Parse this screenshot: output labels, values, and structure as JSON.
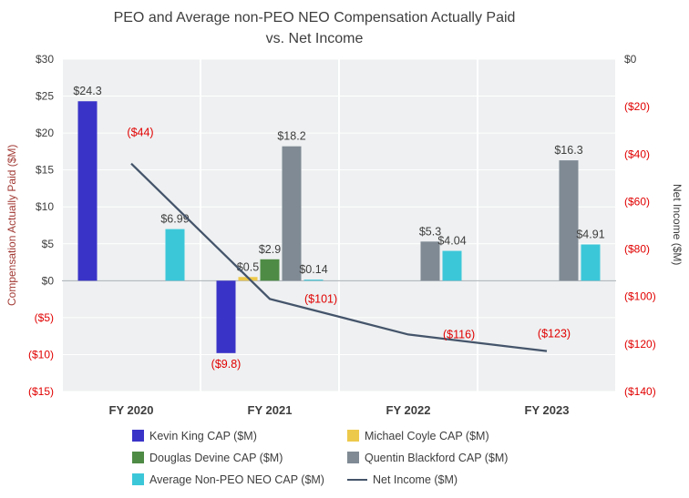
{
  "chart_data": {
    "type": "combo-bar-line",
    "title": "PEO and Average non-PEO NEO Compensation Actually Paid vs. Net Income",
    "title_lines": [
      "PEO and Average non-PEO NEO Compensation Actually Paid",
      "vs. Net Income"
    ],
    "categories": [
      "FY 2020",
      "FY 2021",
      "FY 2022",
      "FY 2023"
    ],
    "bar_series": [
      {
        "name": "Kevin King CAP ($M)",
        "color": "#3a33c8",
        "values": [
          24.3,
          -9.8,
          null,
          null
        ],
        "labels": [
          "$24.3",
          "($9.8)",
          "",
          ""
        ]
      },
      {
        "name": "Michael Coyle CAP ($M)",
        "color": "#edc94b",
        "values": [
          null,
          0.5,
          null,
          null
        ],
        "labels": [
          "",
          "$0.5",
          "",
          ""
        ]
      },
      {
        "name": "Douglas Devine CAP ($M)",
        "color": "#4e8b45",
        "values": [
          null,
          2.9,
          null,
          null
        ],
        "labels": [
          "",
          "$2.9",
          "",
          ""
        ]
      },
      {
        "name": "Quentin Blackford CAP ($M)",
        "color": "#7f8a94",
        "values": [
          null,
          18.2,
          5.3,
          16.3
        ],
        "labels": [
          "",
          "$18.2",
          "$5.3",
          "$16.3"
        ]
      },
      {
        "name": "Average Non-PEO NEO CAP ($M)",
        "color": "#3cc7d9",
        "values": [
          6.99,
          0.14,
          4.04,
          4.91
        ],
        "labels": [
          "$6.99",
          "$0.14",
          "$4.04",
          "$4.91"
        ]
      }
    ],
    "line_series": {
      "name": "Net Income ($M)",
      "color": "#44546a",
      "values": [
        -44,
        -101,
        -116,
        -123
      ],
      "labels": [
        "($44)",
        "($101)",
        "($116)",
        "($123)"
      ]
    },
    "axes": {
      "left": {
        "title": "Compensation Actually Paid ($M)",
        "min": -15,
        "max": 30,
        "step": 5,
        "tick_labels": [
          "$30",
          "$25",
          "$20",
          "$15",
          "$10",
          "$5",
          "$0",
          "($5)",
          "($10)",
          "($15)"
        ]
      },
      "right": {
        "title": "Net Income ($M)",
        "min": -140,
        "max": 0,
        "step": 20,
        "tick_labels": [
          "$0",
          "($20)",
          "($40)",
          "($60)",
          "($80)",
          "($100)",
          "($120)",
          "($140)"
        ]
      }
    },
    "legend": [
      {
        "label": "Kevin King CAP ($M)",
        "color": "#3a33c8",
        "marker": "square"
      },
      {
        "label": "Michael Coyle CAP ($M)",
        "color": "#edc94b",
        "marker": "square"
      },
      {
        "label": "Douglas Devine CAP ($M)",
        "color": "#4e8b45",
        "marker": "square"
      },
      {
        "label": "Quentin Blackford CAP ($M)",
        "color": "#7f8a94",
        "marker": "square"
      },
      {
        "label": "Average Non-PEO NEO CAP ($M)",
        "color": "#3cc7d9",
        "marker": "square"
      },
      {
        "label": "Net Income ($M)",
        "color": "#44546a",
        "marker": "line"
      }
    ],
    "styles": {
      "negative_color": "#e10000",
      "positive_color": "#3d3d3d",
      "plot_bg": "#eef0f1",
      "gridline": "#ffffff",
      "zero_line": "#a8aeb4",
      "legend_pos": "bottom"
    }
  }
}
